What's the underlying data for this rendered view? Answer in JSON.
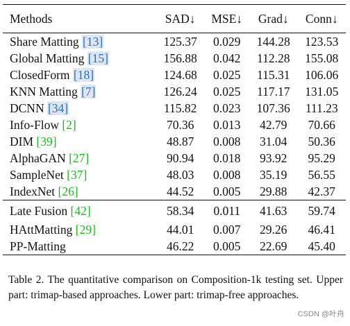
{
  "table": {
    "headers": [
      "Methods",
      "SAD↓",
      "MSE↓",
      "Grad↓",
      "Conn↓"
    ],
    "upper_rows": [
      {
        "name": "Share Matting",
        "ref": "[13]",
        "ref_style": "box",
        "sad": "125.37",
        "mse": "0.029",
        "grad": "144.28",
        "conn": "123.53",
        "bold": []
      },
      {
        "name": "Global Matting",
        "ref": "[15]",
        "ref_style": "box",
        "sad": "156.88",
        "mse": "0.042",
        "grad": "112.28",
        "conn": "155.08",
        "bold": []
      },
      {
        "name": "ClosedForm",
        "ref": "[18]",
        "ref_style": "box",
        "sad": "124.68",
        "mse": "0.025",
        "grad": "115.31",
        "conn": "106.06",
        "bold": []
      },
      {
        "name": "KNN Matting",
        "ref": "[7]",
        "ref_style": "box",
        "sad": "126.24",
        "mse": "0.025",
        "grad": "117.17",
        "conn": "131.05",
        "bold": []
      },
      {
        "name": "DCNN",
        "ref": "[34]",
        "ref_style": "box",
        "sad": "115.82",
        "mse": "0.023",
        "grad": "107.36",
        "conn": "111.23",
        "bold": []
      },
      {
        "name": "Info-Flow",
        "ref": "[2]",
        "ref_style": "green",
        "sad": "70.36",
        "mse": "0.013",
        "grad": "42.79",
        "conn": "70.66",
        "bold": []
      },
      {
        "name": "DIM",
        "ref": "[39]",
        "ref_style": "green",
        "sad": "48.87",
        "mse": "0.008",
        "grad": "31.04",
        "conn": "50.36",
        "bold": []
      },
      {
        "name": "AlphaGAN",
        "ref": "[27]",
        "ref_style": "green",
        "sad": "90.94",
        "mse": "0.018",
        "grad": "93.92",
        "conn": "95.29",
        "bold": []
      },
      {
        "name": "SampleNet",
        "ref": "[37]",
        "ref_style": "green",
        "sad": "48.03",
        "mse": "0.008",
        "grad": "35.19",
        "conn": "56.55",
        "bold": []
      },
      {
        "name": "IndexNet",
        "ref": "[26]",
        "ref_style": "green",
        "sad": "44.52",
        "mse": "0.005",
        "grad": "29.88",
        "conn": "42.37",
        "bold": [
          "sad",
          "mse",
          "grad",
          "conn"
        ]
      }
    ],
    "lower_rows": [
      {
        "name": "Late Fusion",
        "ref": "[42]",
        "ref_style": "green",
        "sad": "58.34",
        "mse": "0.011",
        "grad": "41.63",
        "conn": "59.74",
        "bold": []
      },
      {
        "name": "HAttMatting",
        "ref": "[29]",
        "ref_style": "green",
        "sad": "44.01",
        "mse": "0.007",
        "grad": "29.26",
        "conn": "46.41",
        "bold": [
          "sad"
        ]
      },
      {
        "name": "PP-Matting",
        "ref": "",
        "ref_style": "none",
        "sad": "46.22",
        "mse": "0.005",
        "grad": "22.69",
        "conn": "45.40",
        "bold": [
          "mse",
          "grad",
          "conn"
        ]
      }
    ]
  },
  "caption": "Table 2. The quantitative comparison on Composition-1k testing set. Upper part: trimap-based approaches. Lower part: trimap-free approaches.",
  "watermark": "CSDN @叶舟",
  "colors": {
    "ref_green": "#18b818",
    "ref_box_text": "#2a6fb8",
    "ref_box_bg": "#dde6f2"
  }
}
